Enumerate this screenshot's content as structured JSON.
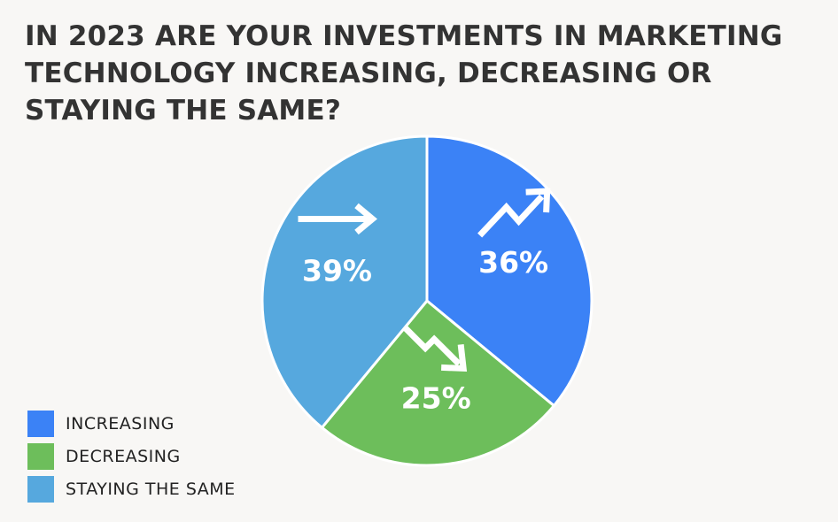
{
  "chart_data": {
    "type": "pie",
    "title": "IN 2023 ARE YOUR INVESTMENTS IN MARKETING TECHNOLOGY INCREASING, DECREASING OR STAYING THE SAME?",
    "legend_position": "bottom-left",
    "slices": [
      {
        "label": "INCREASING",
        "value": 36,
        "value_label": "36%",
        "color": "#3b82f6",
        "icon": "trend-up-arrow-icon"
      },
      {
        "label": "DECREASING",
        "value": 25,
        "value_label": "25%",
        "color": "#6dbe5b",
        "icon": "trend-down-arrow-icon"
      },
      {
        "label": "STAYING THE SAME",
        "value": 39,
        "value_label": "39%",
        "color": "#56a8de",
        "icon": "right-arrow-icon"
      }
    ]
  }
}
